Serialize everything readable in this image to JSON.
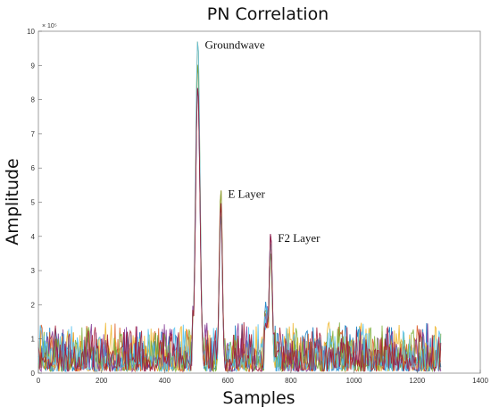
{
  "chart_data": {
    "type": "line",
    "title": "PN Correlation",
    "xlabel": "Samples",
    "ylabel": "Amplitude",
    "xlim": [
      0,
      1400
    ],
    "ylim": [
      0,
      10
    ],
    "y_multiplier_label": "× 10⁵",
    "x_ticks": [
      "0",
      "200",
      "400",
      "600",
      "800",
      "1000",
      "1200",
      "1400"
    ],
    "y_ticks": [
      "0",
      "1",
      "2",
      "3",
      "4",
      "5",
      "6",
      "7",
      "8",
      "9",
      "10"
    ],
    "grid": false,
    "legend": "none",
    "peaks": [
      {
        "x": 505,
        "y": 9.8,
        "label": "Groundwave"
      },
      {
        "x": 578,
        "y": 5.45,
        "label": "E Layer"
      },
      {
        "x": 736,
        "y": 4.15,
        "label": "F2 Layer"
      }
    ],
    "series_colors": [
      "#0072bd",
      "#d95319",
      "#edb120",
      "#7e2f8e",
      "#77ac30",
      "#4dbeee",
      "#a2142f"
    ],
    "data_x_range": [
      0,
      1275
    ]
  }
}
